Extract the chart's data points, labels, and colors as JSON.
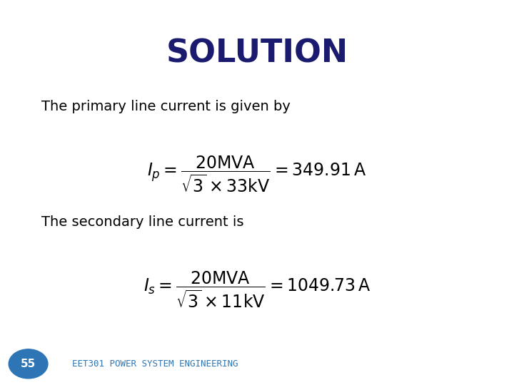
{
  "title": "SOLUTION",
  "title_color": "#1a1a6e",
  "title_fontsize": 32,
  "title_fontweight": "bold",
  "bg_color": "#ffffff",
  "border_color": "#cccccc",
  "text1": "The primary line current is given by",
  "text2": "The secondary line current is",
  "formula1": "$I_p = \\dfrac{\\mathrm{20MVA}}{\\sqrt{3}\\times 33\\mathrm{kV}} = 349.91\\,\\mathrm{A}$",
  "formula2": "$I_s = \\dfrac{\\mathrm{20MVA}}{\\sqrt{3}\\times 11\\mathrm{kV}} = 1049.73\\,\\mathrm{A}$",
  "footer_text": "EET301 POWER SYSTEM ENGINEERING",
  "footer_color": "#2e75b6",
  "badge_text": "55",
  "badge_bg": "#2e75b6",
  "badge_text_color": "#ffffff",
  "text_color": "#000000",
  "text_fontsize": 14,
  "formula_fontsize": 17
}
